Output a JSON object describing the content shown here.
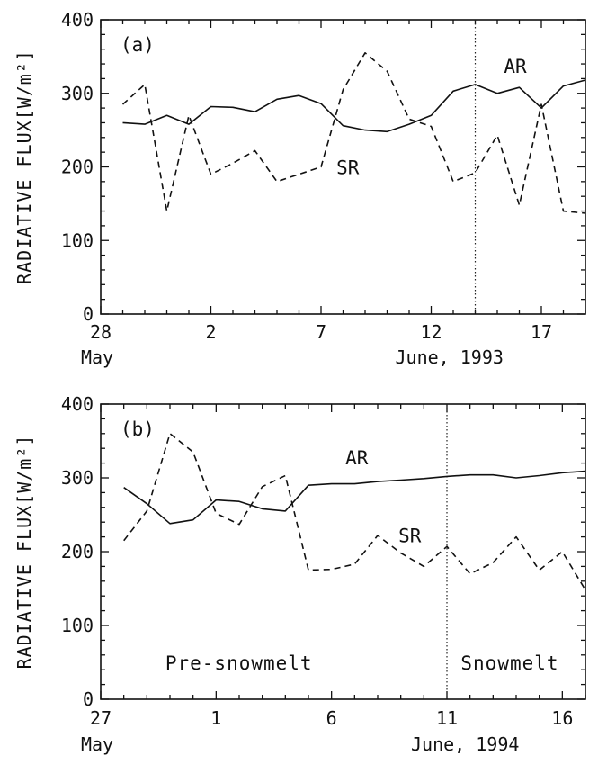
{
  "chart_data": [
    {
      "type": "line",
      "panel_label": "(a)",
      "ylabel": "RADIATIVE  FLUX[W/m²]",
      "ylim": [
        0,
        400
      ],
      "yticks": [
        0,
        100,
        200,
        300,
        400
      ],
      "xlim": [
        28,
        50
      ],
      "xticks": [
        {
          "x": 28,
          "label": "28",
          "sub": "May"
        },
        {
          "x": 33,
          "label": "2",
          "sub": ""
        },
        {
          "x": 38,
          "label": "7",
          "sub": ""
        },
        {
          "x": 43,
          "label": "12",
          "sub": "June, 1993"
        },
        {
          "x": 48,
          "label": "17",
          "sub": ""
        }
      ],
      "divider_x": 45,
      "annotations": [],
      "series": [
        {
          "name": "AR",
          "style": "solid",
          "label_x": 46.3,
          "label_y": 328,
          "x": [
            29,
            30,
            31,
            32,
            33,
            34,
            35,
            36,
            37,
            38,
            39,
            40,
            41,
            42,
            43,
            44,
            45,
            46,
            47,
            48,
            49,
            50
          ],
          "y": [
            260,
            258,
            270,
            258,
            282,
            281,
            275,
            292,
            297,
            286,
            256,
            250,
            248,
            258,
            270,
            303,
            312,
            300,
            308,
            280,
            310,
            318
          ]
        },
        {
          "name": "SR",
          "style": "dashed",
          "label_x": 38.7,
          "label_y": 190,
          "x": [
            29,
            30,
            31,
            32,
            33,
            34,
            35,
            36,
            37,
            38,
            39,
            40,
            41,
            42,
            43,
            44,
            45,
            46,
            47,
            48,
            49,
            50
          ],
          "y": [
            285,
            312,
            140,
            270,
            190,
            205,
            222,
            180,
            190,
            200,
            305,
            355,
            330,
            265,
            255,
            180,
            192,
            243,
            148,
            285,
            140,
            137
          ]
        }
      ]
    },
    {
      "type": "line",
      "panel_label": "(b)",
      "ylabel": "RADIATIVE  FLUX[W/m²]",
      "ylim": [
        0,
        400
      ],
      "yticks": [
        0,
        100,
        200,
        300,
        400
      ],
      "xlim": [
        27,
        48
      ],
      "xticks": [
        {
          "x": 27,
          "label": "27",
          "sub": "May"
        },
        {
          "x": 32,
          "label": "1",
          "sub": ""
        },
        {
          "x": 37,
          "label": "6",
          "sub": ""
        },
        {
          "x": 42,
          "label": "11",
          "sub": "June, 1994"
        },
        {
          "x": 47,
          "label": "16",
          "sub": ""
        }
      ],
      "divider_x": 42,
      "annotations": [
        {
          "text": "Pre-snowmelt",
          "x": 29.8,
          "y": 40
        },
        {
          "text": "Snowmelt",
          "x": 42.6,
          "y": 40
        }
      ],
      "series": [
        {
          "name": "AR",
          "style": "solid",
          "label_x": 37.6,
          "label_y": 318,
          "x": [
            28,
            29,
            30,
            31,
            32,
            33,
            34,
            35,
            36,
            37,
            38,
            39,
            40,
            41,
            42,
            43,
            44,
            45,
            46,
            47,
            48
          ],
          "y": [
            287,
            265,
            238,
            243,
            270,
            268,
            258,
            255,
            290,
            292,
            292,
            295,
            297,
            299,
            302,
            304,
            304,
            300,
            303,
            307,
            309
          ]
        },
        {
          "name": "SR",
          "style": "dashed",
          "label_x": 39.9,
          "label_y": 213,
          "x": [
            28,
            29,
            30,
            31,
            32,
            33,
            34,
            35,
            36,
            37,
            38,
            39,
            40,
            41,
            42,
            43,
            44,
            45,
            46,
            47,
            48
          ],
          "y": [
            215,
            255,
            360,
            335,
            252,
            237,
            288,
            303,
            175,
            176,
            183,
            222,
            198,
            180,
            207,
            170,
            185,
            220,
            175,
            200,
            148
          ]
        }
      ]
    }
  ]
}
